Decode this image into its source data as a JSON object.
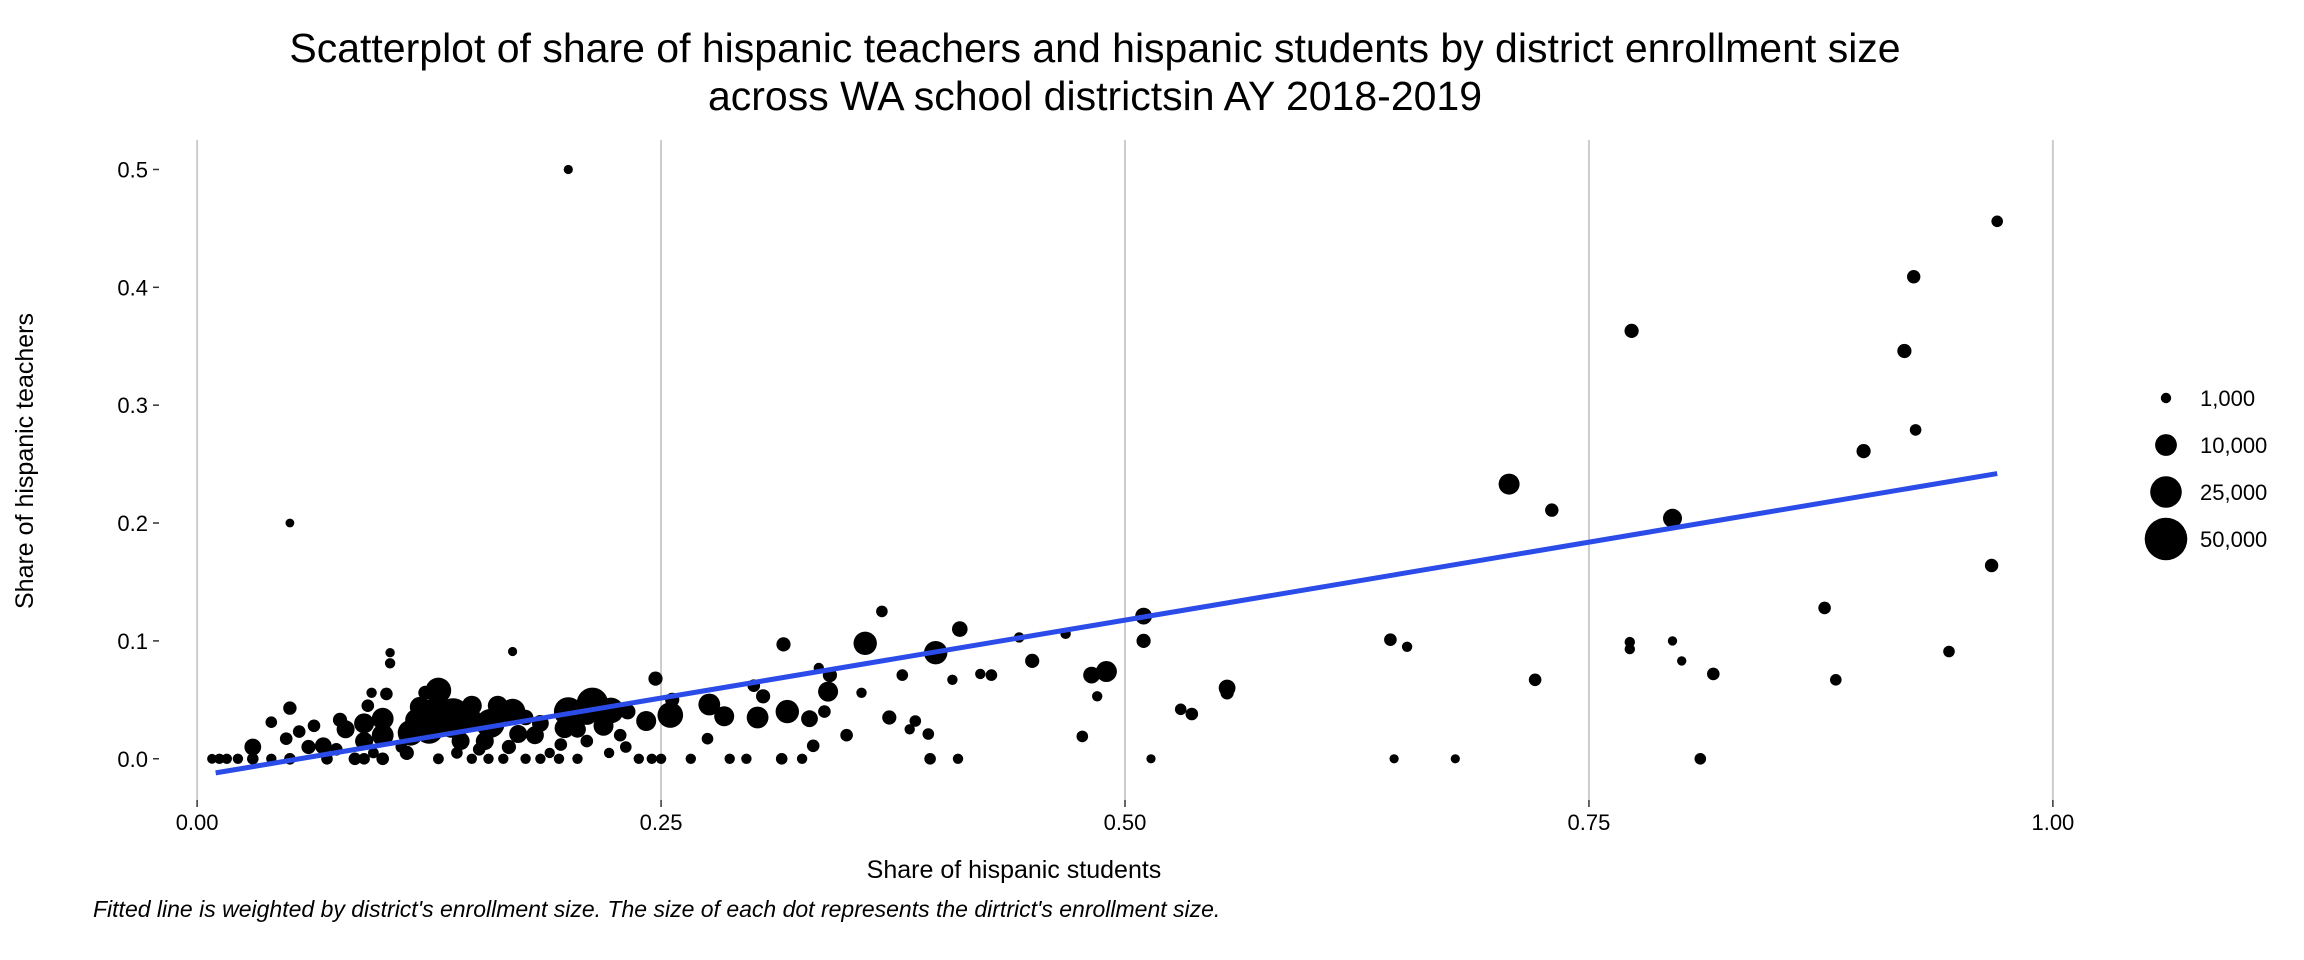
{
  "chart_data": {
    "type": "scatter",
    "title": "Scatterplot of share of hispanic teachers and hispanic students by district enrollment size",
    "subtitle": "across WA school districtsin AY 2018-2019",
    "xlabel": "Share of hispanic students",
    "ylabel": "Share of hispanic teachers",
    "caption": "Fitted line is weighted by district's enrollment size. The size of each dot represents the dirtrict's enrollment size.",
    "xlim": [
      -0.02,
      1.02
    ],
    "ylim": [
      -0.035,
      0.525
    ],
    "x_ticks": [
      0.0,
      0.25,
      0.5,
      0.75,
      1.0
    ],
    "x_tick_labels": [
      "0.00",
      "0.25",
      "0.50",
      "0.75",
      "1.00"
    ],
    "y_ticks": [
      0.0,
      0.1,
      0.2,
      0.3,
      0.4,
      0.5
    ],
    "y_tick_labels": [
      "0.0",
      "0.1",
      "0.2",
      "0.3",
      "0.4",
      "0.5"
    ],
    "grid": "vertical major lines only",
    "legend": {
      "placement": "right",
      "title": "",
      "sizes": [
        1000,
        10000,
        25000,
        50000
      ],
      "labels": [
        "1,000",
        "10,000",
        "25,000",
        "50,000"
      ]
    },
    "point_color": "#000000",
    "fit_line": {
      "color": "#2b4ce8",
      "x": [
        0.01,
        0.97
      ],
      "y": [
        -0.012,
        0.242
      ]
    },
    "points": [
      [
        0.2,
        0.5,
        600
      ],
      [
        0.05,
        0.2,
        500
      ],
      [
        0.97,
        0.456,
        1500
      ],
      [
        0.925,
        0.409,
        2500
      ],
      [
        0.773,
        0.363,
        3000
      ],
      [
        0.92,
        0.346,
        3000
      ],
      [
        0.926,
        0.279,
        1500
      ],
      [
        0.898,
        0.261,
        3000
      ],
      [
        0.707,
        0.233,
        9000
      ],
      [
        0.795,
        0.204,
        7000
      ],
      [
        0.73,
        0.211,
        2500
      ],
      [
        0.967,
        0.164,
        2500
      ],
      [
        0.877,
        0.128,
        2000
      ],
      [
        0.643,
        0.101,
        2000
      ],
      [
        0.652,
        0.095,
        1000
      ],
      [
        0.772,
        0.099,
        1000
      ],
      [
        0.772,
        0.093,
        1000
      ],
      [
        0.795,
        0.1,
        700
      ],
      [
        0.8,
        0.083,
        700
      ],
      [
        0.817,
        0.072,
        2000
      ],
      [
        0.721,
        0.067,
        2000
      ],
      [
        0.883,
        0.067,
        1500
      ],
      [
        0.944,
        0.091,
        1500
      ],
      [
        0.81,
        0.0,
        1500
      ],
      [
        0.645,
        0.0,
        600
      ],
      [
        0.678,
        0.0,
        600
      ],
      [
        0.51,
        0.121,
        5000
      ],
      [
        0.51,
        0.1,
        3000
      ],
      [
        0.555,
        0.06,
        5000
      ],
      [
        0.555,
        0.056,
        2500
      ],
      [
        0.536,
        0.038,
        2000
      ],
      [
        0.53,
        0.042,
        1500
      ],
      [
        0.514,
        0.0,
        600
      ],
      [
        0.49,
        0.074,
        9000
      ],
      [
        0.482,
        0.071,
        5000
      ],
      [
        0.485,
        0.053,
        1000
      ],
      [
        0.477,
        0.019,
        1500
      ],
      [
        0.468,
        0.106,
        1000
      ],
      [
        0.45,
        0.083,
        3000
      ],
      [
        0.443,
        0.103,
        1000
      ],
      [
        0.411,
        0.11,
        4000
      ],
      [
        0.398,
        0.09,
        12000
      ],
      [
        0.407,
        0.067,
        1000
      ],
      [
        0.428,
        0.071,
        1500
      ],
      [
        0.422,
        0.072,
        1000
      ],
      [
        0.369,
        0.125,
        1500
      ],
      [
        0.36,
        0.098,
        12000
      ],
      [
        0.38,
        0.071,
        1500
      ],
      [
        0.373,
        0.035,
        3000
      ],
      [
        0.387,
        0.032,
        1500
      ],
      [
        0.384,
        0.025,
        1000
      ],
      [
        0.394,
        0.021,
        1500
      ],
      [
        0.395,
        0.0,
        1500
      ],
      [
        0.41,
        0.0,
        1000
      ],
      [
        0.341,
        0.071,
        3000
      ],
      [
        0.335,
        0.077,
        1000
      ],
      [
        0.34,
        0.057,
        8000
      ],
      [
        0.358,
        0.056,
        1000
      ],
      [
        0.338,
        0.04,
        2000
      ],
      [
        0.35,
        0.02,
        2000
      ],
      [
        0.33,
        0.034,
        5000
      ],
      [
        0.332,
        0.011,
        2000
      ],
      [
        0.326,
        0.0,
        1000
      ],
      [
        0.316,
        0.097,
        3000
      ],
      [
        0.318,
        0.04,
        12000
      ],
      [
        0.3,
        0.062,
        2000
      ],
      [
        0.305,
        0.053,
        3000
      ],
      [
        0.302,
        0.035,
        10000
      ],
      [
        0.315,
        0.0,
        1500
      ],
      [
        0.296,
        0.0,
        1000
      ],
      [
        0.284,
        0.036,
        8000
      ],
      [
        0.276,
        0.046,
        10000
      ],
      [
        0.275,
        0.017,
        1500
      ],
      [
        0.287,
        0.0,
        1000
      ],
      [
        0.266,
        0.0,
        1000
      ],
      [
        0.255,
        0.037,
        15000
      ],
      [
        0.256,
        0.05,
        3000
      ],
      [
        0.247,
        0.068,
        3000
      ],
      [
        0.242,
        0.032,
        8000
      ],
      [
        0.25,
        0.0,
        1000
      ],
      [
        0.232,
        0.04,
        4000
      ],
      [
        0.228,
        0.02,
        2000
      ],
      [
        0.231,
        0.01,
        1500
      ],
      [
        0.238,
        0.0,
        1000
      ],
      [
        0.223,
        0.041,
        15000
      ],
      [
        0.219,
        0.028,
        8000
      ],
      [
        0.222,
        0.005,
        1000
      ],
      [
        0.213,
        0.047,
        25000
      ],
      [
        0.21,
        0.038,
        10000
      ],
      [
        0.205,
        0.025,
        5000
      ],
      [
        0.21,
        0.015,
        2000
      ],
      [
        0.2,
        0.04,
        20000
      ],
      [
        0.198,
        0.026,
        8000
      ],
      [
        0.196,
        0.012,
        2000
      ],
      [
        0.19,
        0.005,
        1000
      ],
      [
        0.185,
        0.03,
        5000
      ],
      [
        0.182,
        0.02,
        6000
      ],
      [
        0.185,
        0.0,
        1000
      ],
      [
        0.177,
        0.035,
        4000
      ],
      [
        0.17,
        0.091,
        600
      ],
      [
        0.17,
        0.04,
        15000
      ],
      [
        0.173,
        0.021,
        6000
      ],
      [
        0.168,
        0.01,
        3000
      ],
      [
        0.177,
        0.0,
        1000
      ],
      [
        0.162,
        0.045,
        8000
      ],
      [
        0.158,
        0.03,
        20000
      ],
      [
        0.155,
        0.015,
        6000
      ],
      [
        0.157,
        0.0,
        1000
      ],
      [
        0.148,
        0.045,
        8000
      ],
      [
        0.145,
        0.035,
        20000
      ],
      [
        0.142,
        0.015,
        6000
      ],
      [
        0.148,
        0.0,
        1000
      ],
      [
        0.138,
        0.038,
        25000
      ],
      [
        0.137,
        0.027,
        10000
      ],
      [
        0.13,
        0.058,
        15000
      ],
      [
        0.128,
        0.038,
        25000
      ],
      [
        0.125,
        0.025,
        20000
      ],
      [
        0.123,
        0.056,
        3000
      ],
      [
        0.12,
        0.044,
        8000
      ],
      [
        0.118,
        0.033,
        10000
      ],
      [
        0.115,
        0.022,
        15000
      ],
      [
        0.113,
        0.005,
        3000
      ],
      [
        0.104,
        0.09,
        700
      ],
      [
        0.104,
        0.081,
        1000
      ],
      [
        0.102,
        0.055,
        2000
      ],
      [
        0.1,
        0.034,
        10000
      ],
      [
        0.1,
        0.02,
        10000
      ],
      [
        0.1,
        0.0,
        2000
      ],
      [
        0.094,
        0.056,
        1000
      ],
      [
        0.092,
        0.045,
        2000
      ],
      [
        0.09,
        0.03,
        8000
      ],
      [
        0.09,
        0.015,
        6000
      ],
      [
        0.085,
        0.0,
        2000
      ],
      [
        0.08,
        0.025,
        6000
      ],
      [
        0.077,
        0.033,
        3000
      ],
      [
        0.075,
        0.008,
        2000
      ],
      [
        0.07,
        0.0,
        1500
      ],
      [
        0.068,
        0.011,
        5000
      ],
      [
        0.06,
        0.01,
        3000
      ],
      [
        0.063,
        0.028,
        2000
      ],
      [
        0.055,
        0.023,
        2000
      ],
      [
        0.05,
        0.043,
        2500
      ],
      [
        0.05,
        0.0,
        1500
      ],
      [
        0.048,
        0.017,
        2000
      ],
      [
        0.04,
        0.031,
        1500
      ],
      [
        0.04,
        0.0,
        1000
      ],
      [
        0.03,
        0.01,
        5000
      ],
      [
        0.03,
        0.0,
        1500
      ],
      [
        0.022,
        0.0,
        1000
      ],
      [
        0.016,
        0.0,
        1000
      ],
      [
        0.012,
        0.0,
        1000
      ],
      [
        0.008,
        0.0,
        800
      ],
      [
        0.09,
        0.0,
        1500
      ],
      [
        0.095,
        0.005,
        1200
      ],
      [
        0.11,
        0.01,
        1500
      ],
      [
        0.13,
        0.0,
        1200
      ],
      [
        0.14,
        0.005,
        1500
      ],
      [
        0.152,
        0.008,
        2000
      ],
      [
        0.165,
        0.0,
        1000
      ],
      [
        0.195,
        0.0,
        1000
      ],
      [
        0.205,
        0.0,
        1000
      ],
      [
        0.245,
        0.0,
        1000
      ]
    ]
  }
}
